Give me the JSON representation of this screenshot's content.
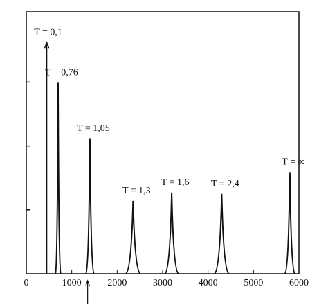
{
  "chart_data": {
    "type": "peaks",
    "x": [
      450,
      700,
      1400,
      2350,
      3200,
      4300,
      5800
    ],
    "values": [
      3.62,
      2.99,
      2.12,
      1.14,
      1.27,
      1.25,
      1.59
    ],
    "widths": [
      0,
      60,
      90,
      160,
      150,
      160,
      110
    ],
    "labels": [
      "T = 0,1",
      "T = 0,76",
      "T = 1,05",
      "T = 1,3",
      "T = 1,6",
      "T = 2,4",
      "T = ∞"
    ],
    "color": "#111111",
    "xlim": [
      0,
      6000
    ],
    "xticks": [
      0,
      1000,
      2000,
      3000,
      4000,
      5000,
      6000
    ],
    "ylim": [
      0,
      4.1
    ],
    "yticks": [
      1,
      2,
      3
    ],
    "marker_x": 1350
  }
}
